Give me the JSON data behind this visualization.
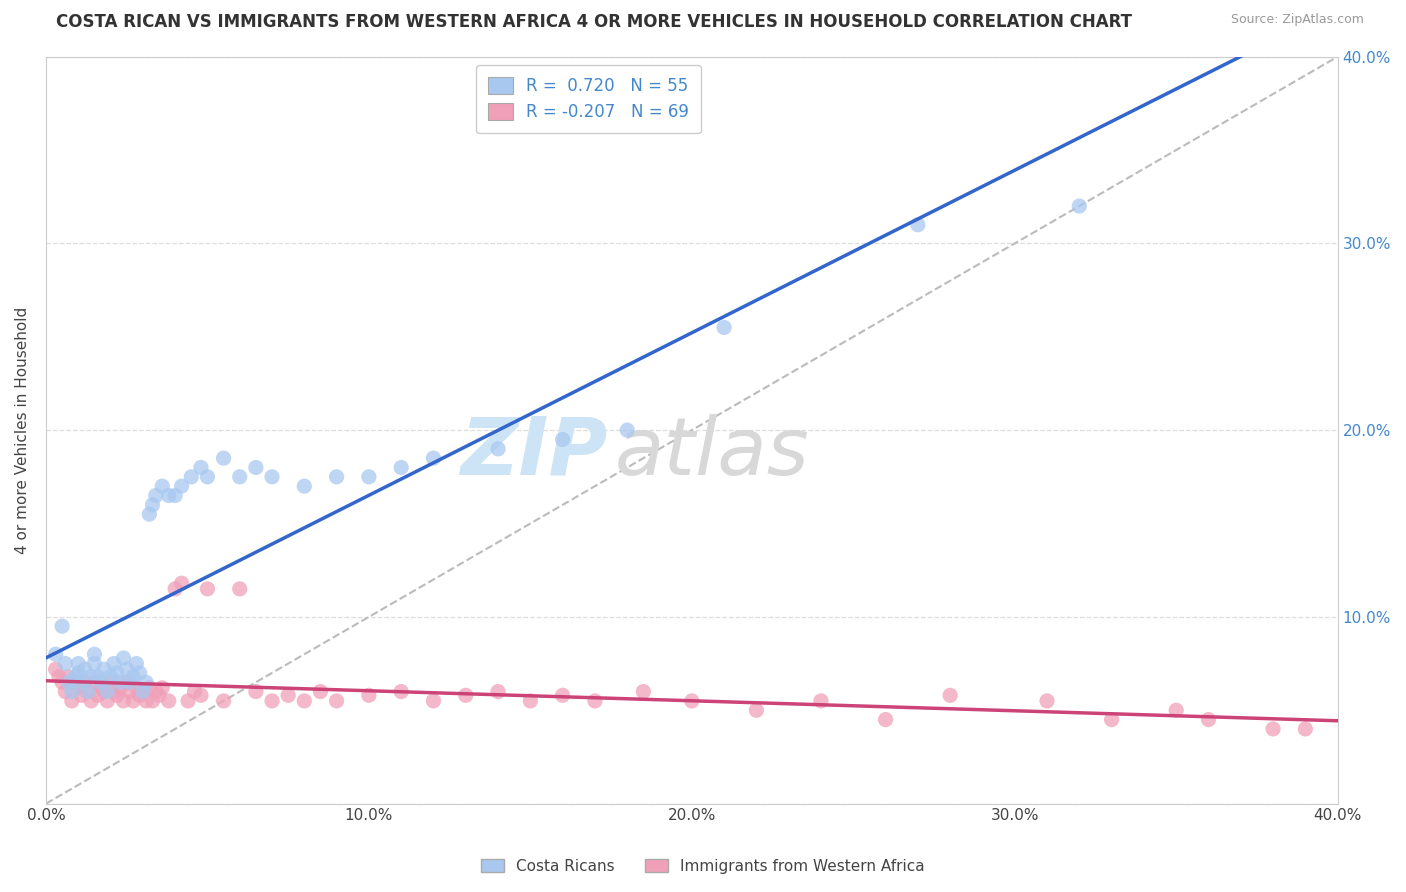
{
  "title": "COSTA RICAN VS IMMIGRANTS FROM WESTERN AFRICA 4 OR MORE VEHICLES IN HOUSEHOLD CORRELATION CHART",
  "source": "Source: ZipAtlas.com",
  "xlabel": "",
  "ylabel": "4 or more Vehicles in Household",
  "xlim": [
    0.0,
    0.4
  ],
  "ylim": [
    0.0,
    0.4
  ],
  "xtick_labels": [
    "0.0%",
    "10.0%",
    "20.0%",
    "30.0%",
    "40.0%"
  ],
  "xtick_vals": [
    0.0,
    0.1,
    0.2,
    0.3,
    0.4
  ],
  "ytick_labels": [
    "",
    "10.0%",
    "20.0%",
    "30.0%",
    "40.0%"
  ],
  "ytick_vals": [
    0.0,
    0.1,
    0.2,
    0.3,
    0.4
  ],
  "blue_R": 0.72,
  "blue_N": 55,
  "pink_R": -0.207,
  "pink_N": 69,
  "blue_color": "#a8c8f0",
  "pink_color": "#f0a0b8",
  "blue_line_color": "#3366cc",
  "pink_line_color": "#cc4477",
  "ref_line_color": "#bbbbbb",
  "legend_blue_label": "Costa Ricans",
  "legend_pink_label": "Immigrants from Western Africa",
  "blue_scatter_x": [
    0.003,
    0.005,
    0.006,
    0.007,
    0.008,
    0.009,
    0.01,
    0.01,
    0.011,
    0.012,
    0.013,
    0.014,
    0.015,
    0.015,
    0.016,
    0.017,
    0.018,
    0.019,
    0.02,
    0.021,
    0.022,
    0.023,
    0.024,
    0.025,
    0.026,
    0.027,
    0.028,
    0.029,
    0.03,
    0.031,
    0.032,
    0.033,
    0.034,
    0.036,
    0.038,
    0.04,
    0.042,
    0.045,
    0.048,
    0.05,
    0.055,
    0.06,
    0.065,
    0.07,
    0.08,
    0.09,
    0.1,
    0.11,
    0.12,
    0.14,
    0.16,
    0.18,
    0.21,
    0.27,
    0.32
  ],
  "blue_scatter_y": [
    0.08,
    0.095,
    0.075,
    0.065,
    0.06,
    0.068,
    0.07,
    0.075,
    0.065,
    0.072,
    0.06,
    0.068,
    0.075,
    0.08,
    0.068,
    0.065,
    0.072,
    0.06,
    0.068,
    0.075,
    0.07,
    0.065,
    0.078,
    0.072,
    0.065,
    0.068,
    0.075,
    0.07,
    0.06,
    0.065,
    0.155,
    0.16,
    0.165,
    0.17,
    0.165,
    0.165,
    0.17,
    0.175,
    0.18,
    0.175,
    0.185,
    0.175,
    0.18,
    0.175,
    0.17,
    0.175,
    0.175,
    0.18,
    0.185,
    0.19,
    0.195,
    0.2,
    0.255,
    0.31,
    0.32
  ],
  "pink_scatter_x": [
    0.003,
    0.004,
    0.005,
    0.006,
    0.007,
    0.008,
    0.009,
    0.01,
    0.011,
    0.012,
    0.013,
    0.014,
    0.015,
    0.016,
    0.017,
    0.018,
    0.019,
    0.02,
    0.021,
    0.022,
    0.023,
    0.024,
    0.025,
    0.026,
    0.027,
    0.028,
    0.029,
    0.03,
    0.031,
    0.032,
    0.033,
    0.034,
    0.035,
    0.036,
    0.038,
    0.04,
    0.042,
    0.044,
    0.046,
    0.048,
    0.05,
    0.055,
    0.06,
    0.065,
    0.07,
    0.075,
    0.08,
    0.085,
    0.09,
    0.1,
    0.11,
    0.12,
    0.13,
    0.14,
    0.15,
    0.16,
    0.17,
    0.185,
    0.2,
    0.22,
    0.24,
    0.26,
    0.28,
    0.31,
    0.33,
    0.35,
    0.36,
    0.38,
    0.39
  ],
  "pink_scatter_y": [
    0.072,
    0.068,
    0.065,
    0.06,
    0.068,
    0.055,
    0.065,
    0.062,
    0.058,
    0.065,
    0.06,
    0.055,
    0.065,
    0.058,
    0.062,
    0.06,
    0.055,
    0.065,
    0.06,
    0.058,
    0.062,
    0.055,
    0.065,
    0.06,
    0.055,
    0.062,
    0.058,
    0.06,
    0.055,
    0.062,
    0.055,
    0.06,
    0.058,
    0.062,
    0.055,
    0.115,
    0.118,
    0.055,
    0.06,
    0.058,
    0.115,
    0.055,
    0.115,
    0.06,
    0.055,
    0.058,
    0.055,
    0.06,
    0.055,
    0.058,
    0.06,
    0.055,
    0.058,
    0.06,
    0.055,
    0.058,
    0.055,
    0.06,
    0.055,
    0.05,
    0.055,
    0.045,
    0.058,
    0.055,
    0.045,
    0.05,
    0.045,
    0.04,
    0.04
  ],
  "watermark_zip_color": "#cce4f5",
  "watermark_atlas_color": "#d8d8d8",
  "background_color": "#ffffff",
  "grid_color": "#dddddd"
}
